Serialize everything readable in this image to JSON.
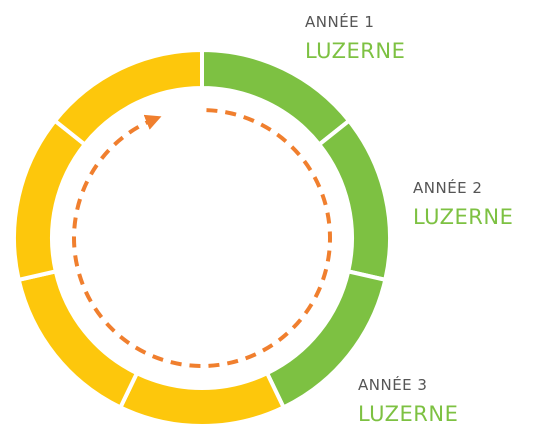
{
  "years": [
    {
      "label": "ANNÉE 1",
      "crop": "LUZERNE"
    },
    {
      "label": "ANNÉE 2",
      "crop": "LUZERNE"
    },
    {
      "label": "ANNÉE 3",
      "crop": "LUZERNE"
    }
  ]
}
